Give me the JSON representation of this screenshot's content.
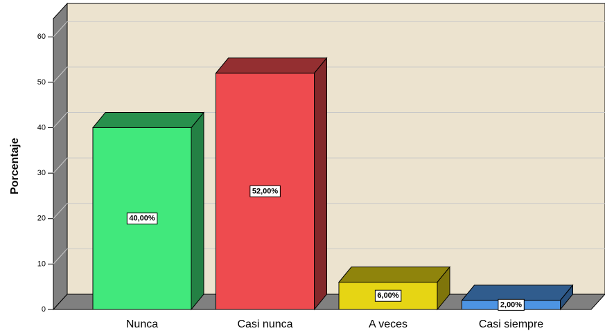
{
  "chart_data": {
    "type": "bar3d",
    "y_label": "Porcentaje",
    "categories": [
      "Nunca",
      "Casi nunca",
      "A veces",
      "Casi siempre"
    ],
    "values": [
      40,
      52,
      6,
      2
    ],
    "value_labels": [
      "40,00%",
      "52,00%",
      "6,00%",
      "2,00%"
    ],
    "colors": [
      "#41e87c",
      "#ee4b4f",
      "#e6d514",
      "#4d94e3"
    ],
    "ylim": [
      0,
      64
    ],
    "yticks": [
      0,
      10,
      20,
      30,
      40,
      50,
      60
    ],
    "grid": true
  }
}
